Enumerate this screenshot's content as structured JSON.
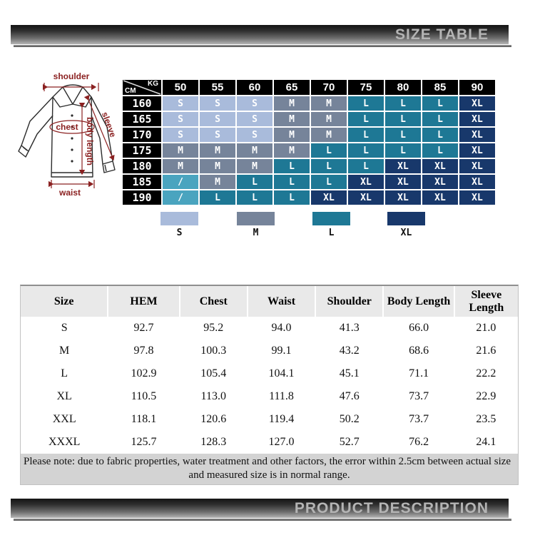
{
  "banners": {
    "top": "SIZE TABLE",
    "bottom": "PRODUCT DESCRIPTION"
  },
  "diagram": {
    "shoulder": "shoulder",
    "chest": "chest",
    "sleeve": "sleeve",
    "body_length": "body length",
    "waist": "waist",
    "annotation_color": "#8b2121"
  },
  "matrix": {
    "unit_top": "KG",
    "unit_side": "CM",
    "weights": [
      "50",
      "55",
      "60",
      "65",
      "70",
      "75",
      "80",
      "85",
      "90"
    ],
    "heights": [
      "160",
      "165",
      "170",
      "175",
      "180",
      "185",
      "190"
    ],
    "cells": [
      [
        "S",
        "S",
        "S",
        "M",
        "M",
        "L",
        "L",
        "L",
        "XL"
      ],
      [
        "S",
        "S",
        "S",
        "M",
        "M",
        "L",
        "L",
        "L",
        "XL"
      ],
      [
        "S",
        "S",
        "S",
        "M",
        "M",
        "L",
        "L",
        "L",
        "XL"
      ],
      [
        "M",
        "M",
        "M",
        "M",
        "L",
        "L",
        "L",
        "L",
        "XL"
      ],
      [
        "M",
        "M",
        "M",
        "L",
        "L",
        "L",
        "XL",
        "XL",
        "XL"
      ],
      [
        "/",
        "M",
        "L",
        "L",
        "L",
        "XL",
        "XL",
        "XL",
        "XL"
      ],
      [
        "/",
        "L",
        "L",
        "L",
        "XL",
        "XL",
        "XL",
        "XL",
        "XL"
      ]
    ]
  },
  "colors": {
    "S": "#a9bbdb",
    "M": "#76849a",
    "L": "#1e7895",
    "XL": "#18386b",
    "slash": "#4aa4bf",
    "header_bg": "#000000",
    "cell_text": "#ffffff"
  },
  "legend": [
    {
      "label": "S",
      "color": "#a9bbdb"
    },
    {
      "label": "M",
      "color": "#76849a"
    },
    {
      "label": "L",
      "color": "#1e7895"
    },
    {
      "label": "XL",
      "color": "#18386b"
    }
  ],
  "size_chart": {
    "columns": [
      "Size",
      "HEM",
      "Chest",
      "Waist",
      "Shoulder",
      "Body Length",
      "Sleeve Length"
    ],
    "rows": [
      [
        "S",
        "92.7",
        "95.2",
        "94.0",
        "41.3",
        "66.0",
        "21.0"
      ],
      [
        "M",
        "97.8",
        "100.3",
        "99.1",
        "43.2",
        "68.6",
        "21.6"
      ],
      [
        "L",
        "102.9",
        "105.4",
        "104.1",
        "45.1",
        "71.1",
        "22.2"
      ],
      [
        "XL",
        "110.5",
        "113.0",
        "111.8",
        "47.6",
        "73.7",
        "22.9"
      ],
      [
        "XXL",
        "118.1",
        "120.6",
        "119.4",
        "50.2",
        "73.7",
        "23.5"
      ],
      [
        "XXXL",
        "125.7",
        "128.3",
        "127.0",
        "52.7",
        "76.2",
        "24.1"
      ]
    ],
    "note_line1": "Please note: due to fabric properties, water treatment and other factors, the error within 2.5cm between actual size",
    "note_line2": "and measured size is in normal range."
  }
}
